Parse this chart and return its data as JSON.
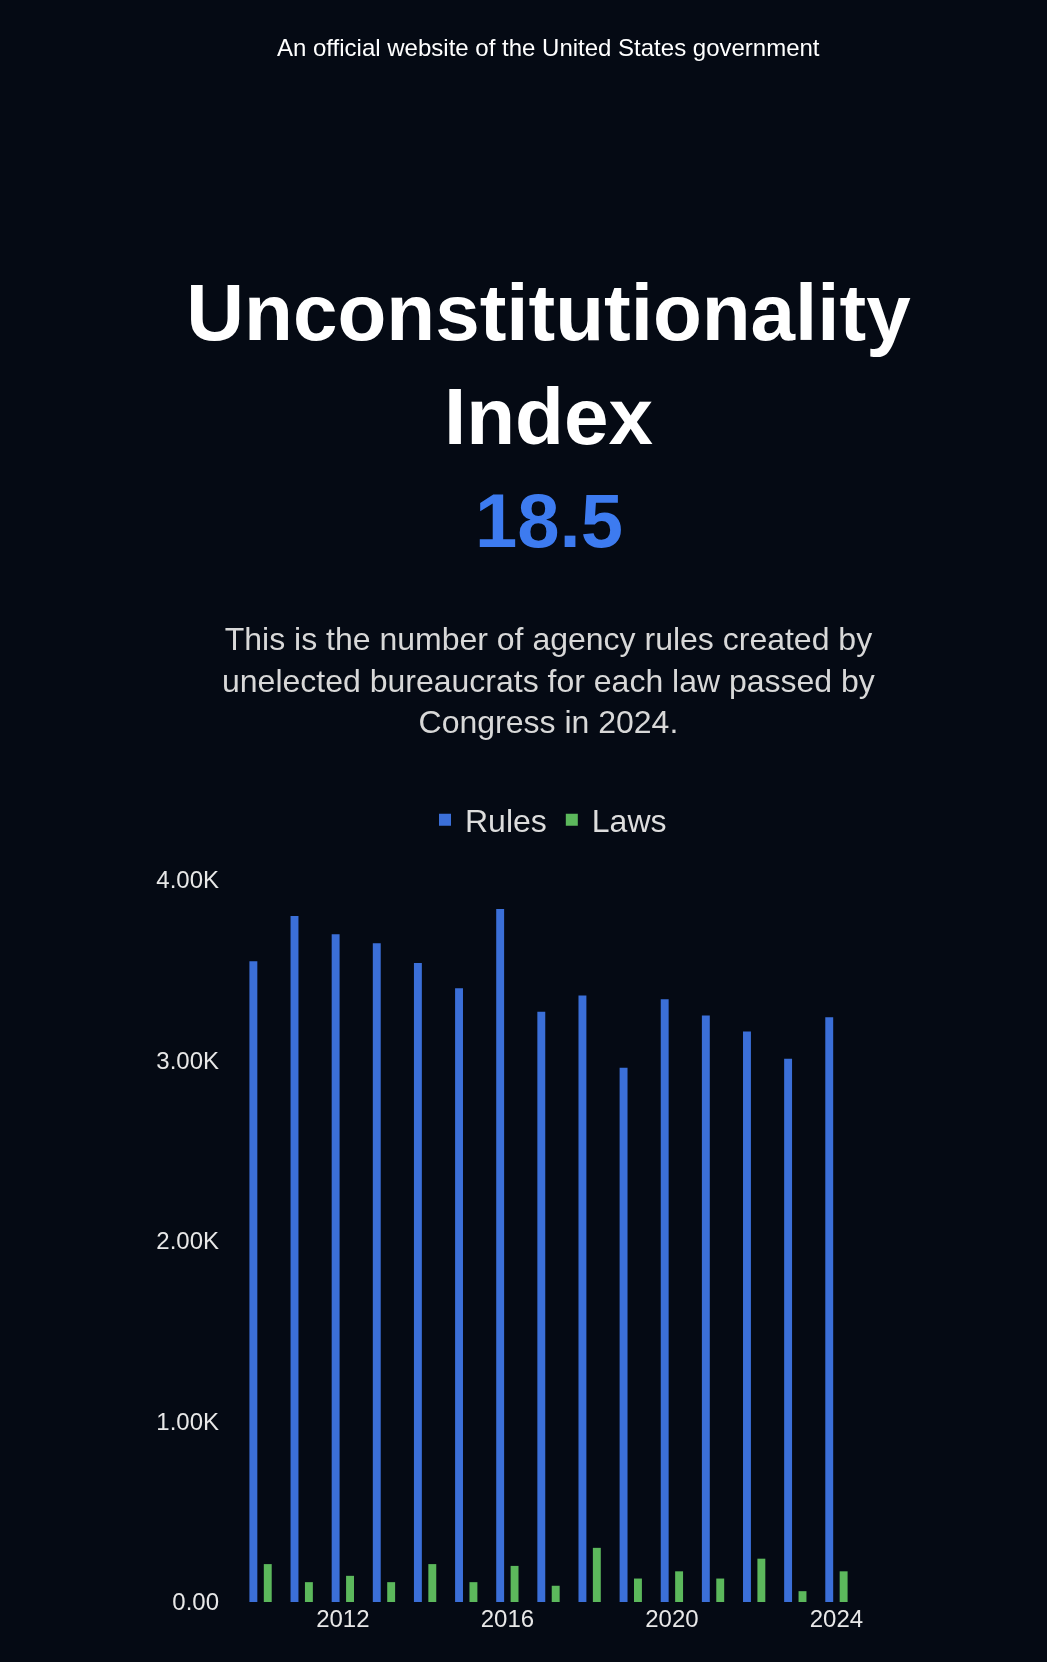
{
  "chart_data": {
    "type": "bar",
    "title": "Unconstitutionality Index",
    "subtitle": "18.5",
    "annotations": [
      "An official website of the United States government",
      "This is the number of agency rules created by unelected bureaucrats for each law passed by Congress in 2024."
    ],
    "categories": [
      null,
      null,
      "2012",
      null,
      null,
      null,
      "2016",
      null,
      null,
      null,
      "2020",
      null,
      null,
      null,
      "2024"
    ],
    "series": [
      {
        "name": "Rules",
        "color": "#3b6fd8",
        "values": [
          3550,
          3800,
          3700,
          3650,
          3540,
          3400,
          3840,
          3270,
          3360,
          2960,
          3340,
          3250,
          3160,
          3010,
          3240
        ]
      },
      {
        "name": "Laws",
        "color": "#5cb85c",
        "values": [
          210,
          110,
          145,
          110,
          210,
          110,
          200,
          90,
          300,
          130,
          170,
          130,
          240,
          60,
          170
        ]
      }
    ],
    "ylim": [
      0,
      4000
    ],
    "yticks": [
      {
        "value": 0,
        "label": "0.00"
      },
      {
        "value": 1000,
        "label": "1.00K"
      },
      {
        "value": 2000,
        "label": "2.00K"
      },
      {
        "value": 3000,
        "label": "3.00K"
      },
      {
        "value": 4000,
        "label": "4.00K"
      }
    ],
    "legend": "top",
    "grid": false
  }
}
